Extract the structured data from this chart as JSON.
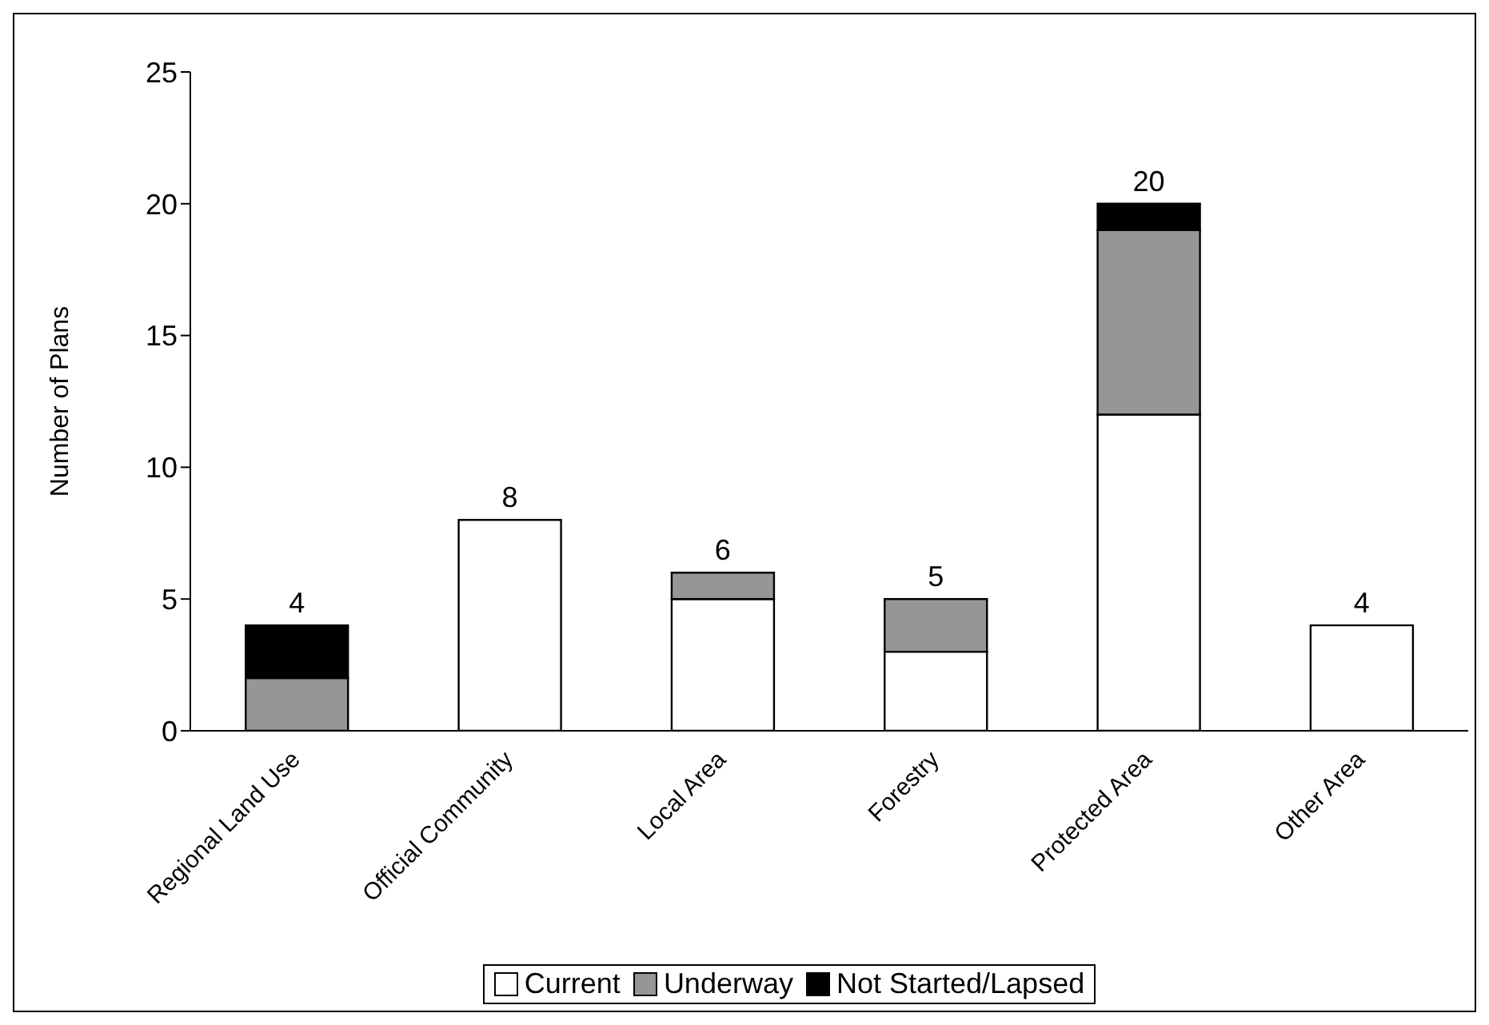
{
  "chart_data": {
    "type": "bar",
    "ylabel": "Number of Plans",
    "categories": [
      "Regional Land Use",
      "Official Community",
      "Local Area",
      "Forestry",
      "Protected Area",
      "Other Area"
    ],
    "series": [
      {
        "name": "Current",
        "color": "#ffffff",
        "values": [
          0,
          8,
          5,
          3,
          12,
          4
        ]
      },
      {
        "name": "Underway",
        "color": "#969696",
        "values": [
          2,
          0,
          1,
          2,
          7,
          0
        ]
      },
      {
        "name": "Not Started/Lapsed",
        "color": "#000000",
        "values": [
          2,
          0,
          0,
          0,
          1,
          0
        ]
      }
    ],
    "stacked": true,
    "totals": [
      "4",
      "8",
      "6",
      "5",
      "20",
      "4"
    ],
    "ylim": [
      0,
      25
    ],
    "yticks": [
      0,
      5,
      10,
      15,
      20,
      25
    ],
    "grid": false,
    "legend": "bottom"
  }
}
